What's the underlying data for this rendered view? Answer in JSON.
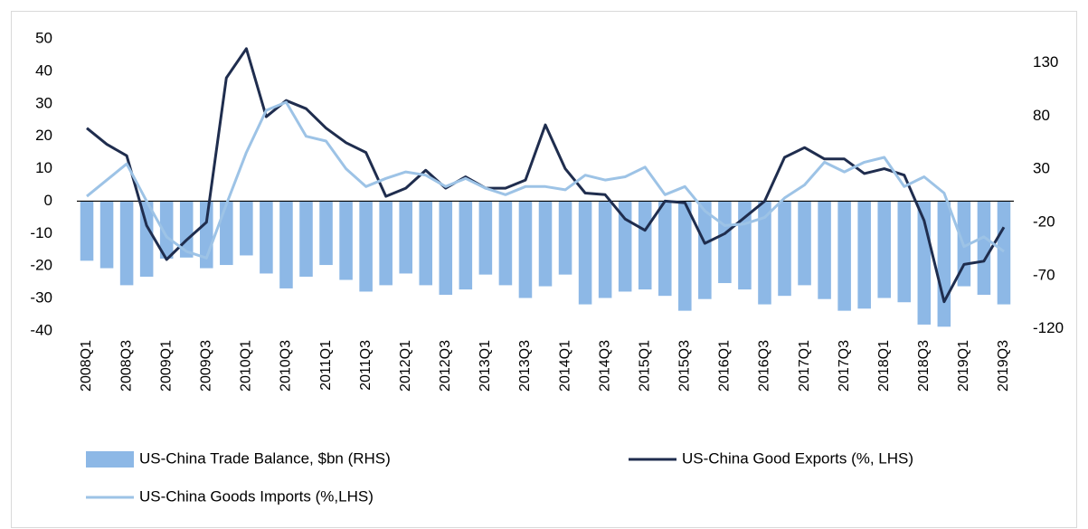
{
  "chart_data": {
    "type": "bar",
    "categories": [
      "2008Q1",
      null,
      "2008Q3",
      null,
      "2009Q1",
      null,
      "2009Q3",
      null,
      "2010Q1",
      null,
      "2010Q3",
      null,
      "2011Q1",
      null,
      "2011Q3",
      null,
      "2012Q1",
      null,
      "2012Q3",
      null,
      "2013Q1",
      null,
      "2013Q3",
      null,
      "2014Q1",
      null,
      "2014Q3",
      null,
      "2015Q1",
      null,
      "2015Q3",
      null,
      "2016Q1",
      null,
      "2016Q3",
      null,
      "2017Q1",
      null,
      "2017Q3",
      null,
      "2018Q1",
      null,
      "2018Q3",
      null,
      "2019Q1",
      null,
      "2019Q3"
    ],
    "series": [
      {
        "name": "US-China Trade Balance, $bn (RHS)",
        "type": "bar",
        "axis": "y2",
        "color": "#8db8e6",
        "values": [
          -56,
          -63,
          -79,
          -71,
          -54,
          -53,
          -63,
          -60,
          -51,
          -68,
          -82,
          -71,
          -60,
          -74,
          -85,
          -79,
          -68,
          -79,
          -88,
          -83,
          -69,
          -79,
          -91,
          -80,
          -69,
          -97,
          -91,
          -85,
          -83,
          -89,
          -103,
          -92,
          -77,
          -83,
          -97,
          -89,
          -79,
          -92,
          -103,
          -101,
          -91,
          -95,
          -116,
          -118,
          -80,
          -88,
          -97
        ]
      },
      {
        "name": "US-China Good Exports (%, LHS)",
        "type": "line",
        "color": "#1f2d4e",
        "values": [
          22.5,
          17.5,
          14,
          -7.5,
          -18,
          -12,
          -6.5,
          38,
          47,
          26,
          31,
          28.5,
          22.5,
          18,
          15,
          1.5,
          4,
          9.5,
          4,
          7.5,
          4,
          4,
          6.5,
          23.5,
          10,
          2.5,
          2,
          -5.5,
          -9,
          0,
          -0.5,
          -13,
          -10,
          -5,
          0,
          13.5,
          16.5,
          13,
          13,
          8.5,
          10,
          8,
          -6,
          -31,
          -19.5,
          -18.5,
          -8
        ]
      },
      {
        "name": "US-China Goods Imports (%,LHS)",
        "type": "line",
        "color": "#9dc3e6",
        "values": [
          1.5,
          6.5,
          11.5,
          0,
          -11,
          -15.5,
          -17.5,
          -1,
          15,
          28,
          30.5,
          20,
          18.5,
          10,
          4.5,
          7,
          9,
          8,
          4.5,
          7,
          4,
          2,
          4.5,
          4.5,
          3.5,
          8,
          6.5,
          7.5,
          10.5,
          2,
          4.5,
          -3,
          -7.5,
          -7,
          -5,
          1,
          5,
          12,
          9,
          12,
          13.5,
          4.5,
          7.5,
          2.5,
          -14,
          -11,
          -15.5
        ]
      }
    ],
    "ylim": [
      -40,
      50
    ],
    "yticks": [
      -40,
      -30,
      -20,
      -10,
      0,
      10,
      20,
      30,
      40,
      50
    ],
    "y2lim": [
      -122,
      152.5
    ],
    "y2ticks": [
      -120,
      -70,
      -20,
      30,
      80,
      130
    ]
  }
}
